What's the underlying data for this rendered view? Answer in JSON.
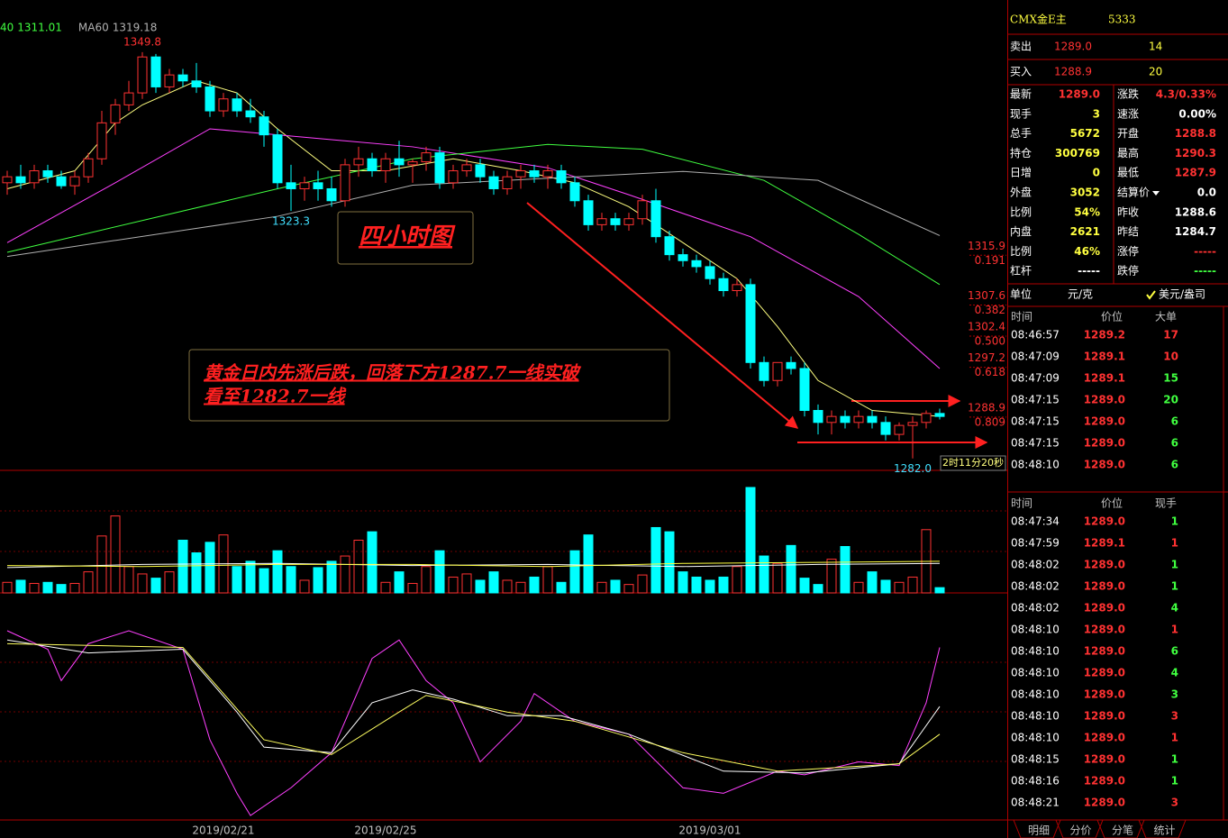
{
  "chart_data": {
    "type": "candlestick",
    "ylim": [
      1280,
      1357
    ],
    "candles": [
      [
        1328,
        1330,
        1326,
        1329
      ],
      [
        1329,
        1331,
        1327,
        1328
      ],
      [
        1328,
        1331,
        1327,
        1330
      ],
      [
        1330,
        1331,
        1328,
        1329
      ],
      [
        1329,
        1330,
        1327,
        1327.5
      ],
      [
        1327.5,
        1330,
        1326,
        1329
      ],
      [
        1329,
        1333,
        1328,
        1332
      ],
      [
        1332,
        1340,
        1331,
        1338
      ],
      [
        1338,
        1342,
        1336,
        1341
      ],
      [
        1341,
        1345,
        1340,
        1343
      ],
      [
        1343,
        1349.8,
        1342,
        1349
      ],
      [
        1349,
        1349.5,
        1343,
        1344
      ],
      [
        1344,
        1347,
        1343,
        1346
      ],
      [
        1346,
        1347,
        1344,
        1345
      ],
      [
        1345,
        1348,
        1343,
        1344
      ],
      [
        1344,
        1345,
        1339,
        1340
      ],
      [
        1340,
        1343,
        1339,
        1342
      ],
      [
        1342,
        1343,
        1339,
        1340
      ],
      [
        1340,
        1342,
        1338,
        1339
      ],
      [
        1339,
        1340,
        1334,
        1336
      ],
      [
        1336,
        1337,
        1327,
        1328
      ],
      [
        1328,
        1331,
        1323.3,
        1327
      ],
      [
        1327,
        1329,
        1325,
        1328
      ],
      [
        1328,
        1330,
        1325,
        1327
      ],
      [
        1327,
        1329,
        1324,
        1325
      ],
      [
        1325,
        1332,
        1324,
        1331
      ],
      [
        1331,
        1334,
        1329,
        1332
      ],
      [
        1332,
        1333,
        1329,
        1330
      ],
      [
        1330,
        1333,
        1328,
        1332
      ],
      [
        1332,
        1335,
        1329,
        1331
      ],
      [
        1331,
        1332,
        1328,
        1331.5
      ],
      [
        1331.5,
        1334,
        1330,
        1333
      ],
      [
        1333,
        1334,
        1327,
        1328
      ],
      [
        1328,
        1331,
        1327,
        1330
      ],
      [
        1330,
        1332,
        1329,
        1331
      ],
      [
        1331,
        1332,
        1328,
        1329
      ],
      [
        1329,
        1330,
        1326,
        1327
      ],
      [
        1327,
        1330,
        1326,
        1329
      ],
      [
        1329,
        1331,
        1327,
        1330
      ],
      [
        1330,
        1331,
        1328,
        1329
      ],
      [
        1329,
        1331,
        1327,
        1330
      ],
      [
        1330,
        1331,
        1327,
        1328
      ],
      [
        1328,
        1329,
        1324,
        1325
      ],
      [
        1325,
        1326,
        1320,
        1321
      ],
      [
        1321,
        1323,
        1320,
        1322
      ],
      [
        1322,
        1323,
        1320,
        1321
      ],
      [
        1321,
        1323,
        1320,
        1322
      ],
      [
        1322,
        1326,
        1321,
        1325
      ],
      [
        1325,
        1327,
        1318,
        1319
      ],
      [
        1319,
        1320,
        1315,
        1316
      ],
      [
        1316,
        1317,
        1314,
        1315
      ],
      [
        1315,
        1316,
        1313,
        1314
      ],
      [
        1314,
        1315,
        1311,
        1312
      ],
      [
        1312,
        1313,
        1309,
        1310
      ],
      [
        1310,
        1312,
        1309,
        1311
      ],
      [
        1311,
        1312,
        1297,
        1298
      ],
      [
        1298,
        1299,
        1294,
        1295
      ],
      [
        1295,
        1298,
        1294,
        1298
      ],
      [
        1298,
        1299,
        1296,
        1297
      ],
      [
        1297,
        1298,
        1289,
        1290
      ],
      [
        1290,
        1291,
        1286,
        1288
      ],
      [
        1288,
        1290,
        1286,
        1289
      ],
      [
        1289,
        1290,
        1287,
        1288
      ],
      [
        1288,
        1290,
        1287,
        1289
      ],
      [
        1289,
        1290,
        1287,
        1288
      ],
      [
        1288,
        1289,
        1285,
        1286
      ],
      [
        1286,
        1288,
        1285,
        1287.5
      ],
      [
        1287.5,
        1289,
        1282,
        1288
      ],
      [
        1288,
        1290,
        1287,
        1289.5
      ],
      [
        1289.5,
        1290.3,
        1288.5,
        1289
      ]
    ],
    "dates": [
      null,
      null,
      null,
      null,
      null,
      null,
      null,
      null,
      null,
      null,
      null,
      null,
      null,
      null,
      null,
      null,
      "2019/02/21",
      null,
      null,
      null,
      null,
      null,
      null,
      null,
      null,
      null,
      null,
      null,
      "2019/02/25",
      null,
      null,
      null,
      null,
      null,
      null,
      null,
      null,
      null,
      null,
      null,
      null,
      null,
      null,
      null,
      null,
      null,
      null,
      null,
      null,
      null,
      null,
      null,
      "2019/03/01",
      null,
      null,
      null,
      null,
      null,
      null,
      null,
      null,
      null,
      null,
      null,
      null,
      null,
      null,
      null,
      null,
      null
    ],
    "ma_series": [
      {
        "color": "#ffff80",
        "x": [
          0,
          5,
          8,
          10,
          14,
          17,
          20,
          24,
          28,
          33,
          38,
          42,
          46,
          50,
          54,
          57,
          60,
          64,
          69
        ],
        "values": [
          1327,
          1330,
          1338,
          1341,
          1345,
          1343,
          1337,
          1330,
          1330,
          1332,
          1330,
          1328,
          1324,
          1318,
          1312,
          1304,
          1295,
          1290,
          1289
        ]
      },
      {
        "color": "#ff40ff",
        "x": [
          0,
          8,
          15,
          20,
          30,
          40,
          46,
          55,
          63,
          69
        ],
        "values": [
          1318,
          1328,
          1337,
          1336,
          1334,
          1330.5,
          1326,
          1319,
          1309,
          1297
        ]
      },
      {
        "name": "40",
        "color": "#40ff40",
        "x": [
          0,
          20,
          30,
          40,
          47,
          56,
          63,
          69
        ],
        "values": [
          1316.4,
          1327,
          1332,
          1334.4,
          1333.6,
          1328.4,
          1319.4,
          1311.01
        ]
      },
      {
        "name": "MA60",
        "color": "#b0b0b0",
        "x": [
          0,
          20,
          30,
          50,
          60,
          69
        ],
        "values": [
          1315.7,
          1322.4,
          1327.6,
          1329.9,
          1328.4,
          1319.18
        ]
      }
    ],
    "extreme_labels": [
      1349.8,
      1323.3,
      {
        "value": 1282,
        "label": "1282.0"
      }
    ],
    "fib_levels": [
      {
        "price": 1315.9,
        "ratio": 0.191
      },
      {
        "price": 1307.6,
        "ratio": 0.382
      },
      {
        "price": 1302.4,
        "ratio": {
          "value": 0.5,
          "label": "0.500"
        }
      },
      {
        "price": 1297.2,
        "ratio": 0.618
      },
      {
        "price": 1288.9,
        "ratio": 0.809
      }
    ],
    "timer": "2时11分20秒",
    "annotations": [
      "四小时图",
      "黄金日内先涨后跌，回落下方1287.7一线实破",
      "看至1282.7一线"
    ],
    "volume": {
      "ylim": [
        0,
        100
      ],
      "values": [
        10,
        12,
        9,
        10,
        8,
        9,
        20,
        54,
        73,
        25,
        18,
        14,
        20,
        50,
        38,
        48,
        55,
        25,
        30,
        23,
        40,
        25,
        12,
        24,
        30,
        35,
        50,
        58,
        10,
        20,
        9,
        25,
        40,
        15,
        18,
        12,
        20,
        12,
        10,
        15,
        25,
        10,
        40,
        55,
        10,
        12,
        8,
        17,
        62,
        58,
        20,
        15,
        12,
        15,
        25,
        100,
        35,
        28,
        45,
        14,
        8,
        32,
        44,
        10,
        20,
        12,
        10,
        15,
        60,
        5
      ],
      "ma_series": [
        {
          "color": "#ffffff",
          "x": [
            0,
            10,
            20,
            30,
            40,
            50,
            60,
            69
          ],
          "values": [
            24,
            27,
            28,
            26,
            27,
            25,
            27,
            28
          ]
        },
        {
          "color": "#ffff40",
          "x": [
            0,
            10,
            20,
            30,
            40,
            50,
            60,
            69
          ],
          "values": [
            26,
            25,
            27,
            27,
            25,
            28,
            29,
            30
          ]
        }
      ]
    },
    "kdj": {
      "ylim": [
        0,
        100
      ],
      "series": [
        {
          "color": "#ff40ff",
          "x": [
            0,
            3,
            4,
            6,
            9,
            13,
            15,
            17,
            18,
            21,
            24,
            27,
            29,
            31,
            33,
            35,
            38,
            39,
            42,
            46,
            50,
            53,
            57,
            59,
            63,
            66,
            68,
            69
          ],
          "values": [
            100,
            90,
            73,
            93,
            100,
            90,
            41,
            12,
            0,
            15,
            34,
            85,
            95,
            73,
            61,
            29,
            51,
            66,
            51,
            44,
            15,
            12,
            24,
            22,
            29,
            27,
            61,
            91
          ]
        },
        {
          "color": "#ffffff",
          "x": [
            0,
            6,
            13,
            17,
            19,
            24,
            27,
            30,
            33,
            37,
            41,
            46,
            53,
            59,
            66,
            69
          ],
          "values": [
            95,
            88,
            90,
            56,
            37,
            34,
            61,
            68,
            63,
            54,
            54,
            44,
            24,
            23,
            28,
            59
          ]
        },
        {
          "color": "#ffff60",
          "x": [
            0,
            13,
            19,
            24,
            29,
            31,
            37,
            42,
            50,
            57,
            66,
            69
          ],
          "values": [
            93,
            91,
            41,
            33,
            56,
            65,
            56,
            51,
            34,
            24,
            28,
            44
          ]
        }
      ]
    }
  },
  "quote_panel": {
    "symbol": "CMX金E主",
    "code": "5333",
    "ask": {
      "label": "卖出",
      "price": "1289.0",
      "volume": "14"
    },
    "bid": {
      "label": "买入",
      "price": "1288.9",
      "volume": "20"
    },
    "rows": [
      {
        "left": {
          "label": "最新",
          "value": "1289.0",
          "color": "#ff3232"
        },
        "right": {
          "label": "涨跌",
          "value": "4.3/0.33%",
          "color": "#ff3232"
        }
      },
      {
        "left": {
          "label": "现手",
          "value": "3",
          "color": "#ffff40"
        },
        "right": {
          "label": "速涨",
          "value": "0.00%",
          "color": "#ffffff"
        }
      },
      {
        "left": {
          "label": "总手",
          "value": "5672",
          "color": "#ffff40"
        },
        "right": {
          "label": "开盘",
          "value": "1288.8",
          "color": "#ff3232"
        }
      },
      {
        "left": {
          "label": "持仓",
          "value": "300769",
          "color": "#ffff40"
        },
        "right": {
          "label": "最高",
          "value": "1290.3",
          "color": "#ff3232"
        }
      },
      {
        "left": {
          "label": "日增",
          "value": "0",
          "color": "#ffff40"
        },
        "right": {
          "label": "最低",
          "value": "1287.9",
          "color": "#ff3232"
        }
      },
      {
        "left": {
          "label": "外盘",
          "value": "3052",
          "color": "#ffff40"
        },
        "right": {
          "label": "结算价",
          "value": "0.0",
          "color": "#ffffff"
        }
      },
      {
        "left": {
          "label": "比例",
          "value": "54%",
          "color": "#ffff40"
        },
        "right": {
          "label": "昨收",
          "value": "1288.6",
          "color": "#ffffff"
        }
      },
      {
        "left": {
          "label": "内盘",
          "value": "2621",
          "color": "#ffff40"
        },
        "right": {
          "label": "昨结",
          "value": "1284.7",
          "color": "#ffffff"
        }
      },
      {
        "left": {
          "label": "比例",
          "value": "46%",
          "color": "#ffff40"
        },
        "right": {
          "label": "涨停",
          "value": "-----",
          "color": "#ff3232"
        }
      },
      {
        "left": {
          "label": "杠杆",
          "value": "-----",
          "color": "#ffffff"
        },
        "right": {
          "label": "跌停",
          "value": "-----",
          "color": "#40ff40"
        }
      }
    ],
    "unit": {
      "label": "单位",
      "option1": "元/克",
      "option2": "美元/盎司"
    },
    "big_orders": {
      "headers": [
        "时间",
        "价位",
        "大单"
      ],
      "rows": [
        {
          "time": "08:46:57",
          "price": "1289.2",
          "size": "17",
          "color": "#ff3232"
        },
        {
          "time": "08:47:09",
          "price": "1289.1",
          "size": "10",
          "color": "#ff3232"
        },
        {
          "time": "08:47:09",
          "price": "1289.1",
          "size": "15",
          "color": "#40ff40"
        },
        {
          "time": "08:47:15",
          "price": "1289.0",
          "size": "20",
          "color": "#40ff40"
        },
        {
          "time": "08:47:15",
          "price": "1289.0",
          "size": "6",
          "color": "#40ff40"
        },
        {
          "time": "08:47:15",
          "price": "1289.0",
          "size": "6",
          "color": "#40ff40"
        },
        {
          "time": "08:48:10",
          "price": "1289.0",
          "size": "6",
          "color": "#40ff40"
        }
      ]
    },
    "trades": {
      "headers": [
        "时间",
        "价位",
        "现手"
      ],
      "rows": [
        {
          "time": "08:47:34",
          "price": "1289.0",
          "size": "1",
          "color": "#40ff40"
        },
        {
          "time": "08:47:59",
          "price": "1289.1",
          "size": "1",
          "color": "#ff3232"
        },
        {
          "time": "08:48:02",
          "price": "1289.0",
          "size": "1",
          "color": "#40ff40"
        },
        {
          "time": "08:48:02",
          "price": "1289.0",
          "size": "1",
          "color": "#40ff40"
        },
        {
          "time": "08:48:02",
          "price": "1289.0",
          "size": "4",
          "color": "#40ff40"
        },
        {
          "time": "08:48:10",
          "price": "1289.0",
          "size": "1",
          "color": "#ff3232"
        },
        {
          "time": "08:48:10",
          "price": "1289.0",
          "size": "6",
          "color": "#40ff40"
        },
        {
          "time": "08:48:10",
          "price": "1289.0",
          "size": "4",
          "color": "#40ff40"
        },
        {
          "time": "08:48:10",
          "price": "1289.0",
          "size": "3",
          "color": "#40ff40"
        },
        {
          "time": "08:48:10",
          "price": "1289.0",
          "size": "3",
          "color": "#ff3232"
        },
        {
          "time": "08:48:10",
          "price": "1289.0",
          "size": "1",
          "color": "#ff3232"
        },
        {
          "time": "08:48:15",
          "price": "1289.0",
          "size": "1",
          "color": "#40ff40"
        },
        {
          "time": "08:48:16",
          "price": "1289.0",
          "size": "1",
          "color": "#40ff40"
        },
        {
          "time": "08:48:21",
          "price": "1289.0",
          "size": "3",
          "color": "#ff3232"
        }
      ]
    },
    "tabs": [
      "明细",
      "分价",
      "分笔",
      "统计"
    ]
  }
}
